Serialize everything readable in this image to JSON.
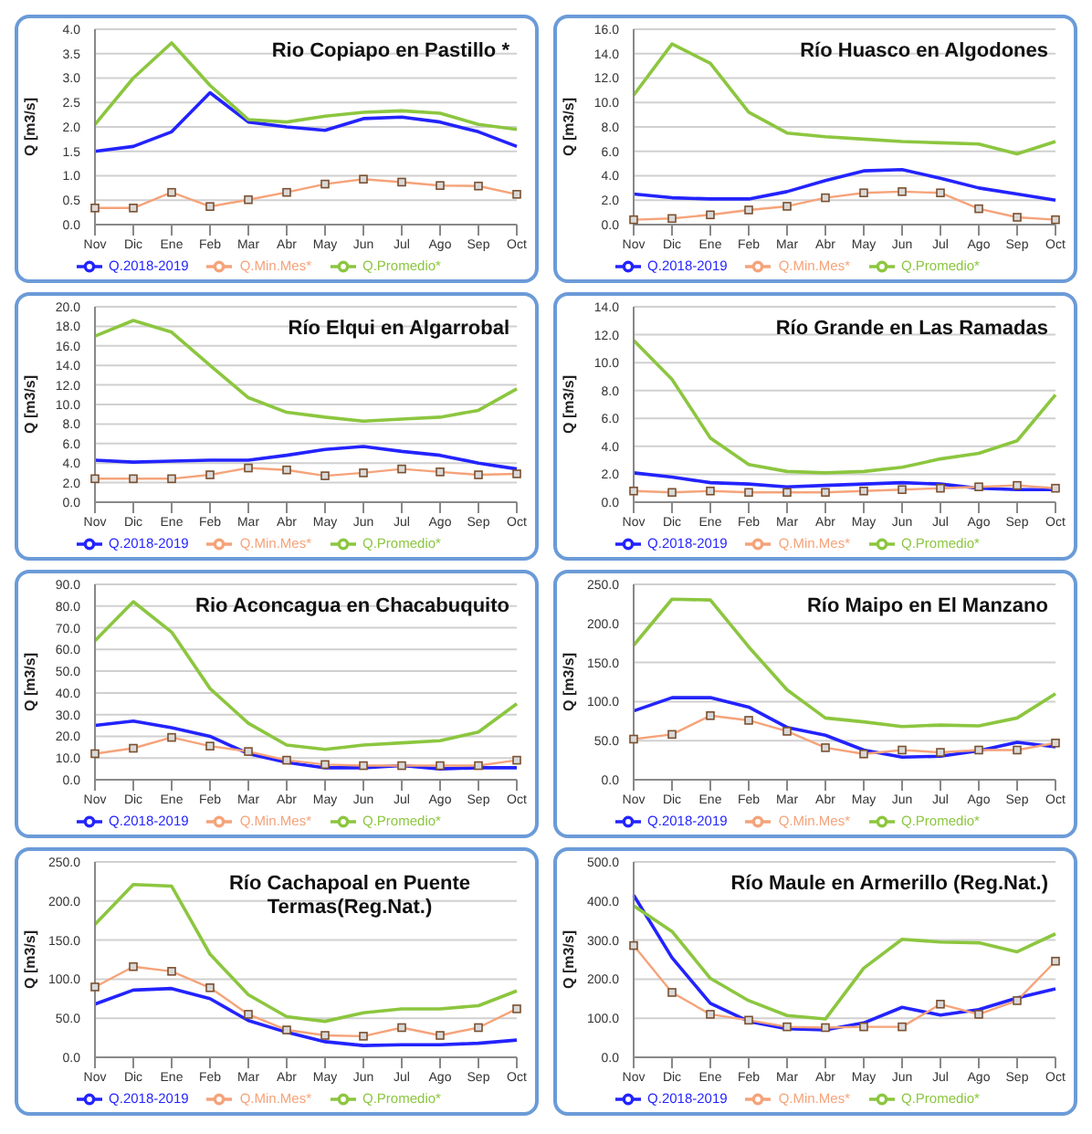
{
  "chart_data": [
    {
      "type": "line",
      "title": "Rio Copiapo en Pastillo *",
      "ylabel": "Q [m3/s]",
      "categories": [
        "Nov",
        "Dic",
        "Ene",
        "Feb",
        "Mar",
        "Abr",
        "May",
        "Jun",
        "Jul",
        "Ago",
        "Sep",
        "Oct"
      ],
      "ylim": [
        0,
        4
      ],
      "yticks": [
        {
          "value": 0,
          "label": "0.0"
        },
        {
          "value": 0.5,
          "label": "0.5"
        },
        {
          "value": 1,
          "label": "1.0"
        },
        {
          "value": 1.5,
          "label": "1.5"
        },
        {
          "value": 2,
          "label": "2.0"
        },
        {
          "value": 2.5,
          "label": "2.5"
        },
        {
          "value": 3,
          "label": "3.0"
        },
        {
          "value": 3.5,
          "label": "3.5"
        },
        {
          "value": 4,
          "label": "4.0"
        }
      ],
      "grid": "y",
      "legend": "bottom",
      "series": [
        {
          "name": "Q.2018-2019",
          "color": "#2323ff",
          "marker": "none",
          "values": [
            1.5,
            1.6,
            1.9,
            2.7,
            2.1,
            2.0,
            1.93,
            2.17,
            2.2,
            2.1,
            1.9,
            1.6
          ]
        },
        {
          "name": "Q.Promedio*",
          "color": "#8cc63f",
          "marker": "none",
          "values": [
            2.05,
            3.0,
            3.72,
            2.85,
            2.15,
            2.1,
            2.22,
            2.3,
            2.33,
            2.28,
            2.05,
            1.95
          ]
        },
        {
          "name": "Q.Min.Mes*",
          "color": "#f5a37a",
          "marker": "square",
          "values": [
            0.34,
            0.34,
            0.66,
            0.37,
            0.51,
            0.66,
            0.83,
            0.93,
            0.87,
            0.8,
            0.79,
            0.62
          ]
        }
      ]
    },
    {
      "type": "line",
      "title": "Río Huasco en Algodones",
      "ylabel": "Q [m3/s]",
      "categories": [
        "Nov",
        "Dic",
        "Ene",
        "Feb",
        "Mar",
        "Abr",
        "May",
        "Jun",
        "Jul",
        "Ago",
        "Sep",
        "Oct"
      ],
      "ylim": [
        0,
        16
      ],
      "yticks": [
        {
          "value": 0,
          "label": "0.0"
        },
        {
          "value": 2,
          "label": "2.0"
        },
        {
          "value": 4,
          "label": "4.0"
        },
        {
          "value": 6,
          "label": "6.0"
        },
        {
          "value": 8,
          "label": "8.0"
        },
        {
          "value": 10,
          "label": "10.0"
        },
        {
          "value": 12,
          "label": "12.0"
        },
        {
          "value": 14,
          "label": "14.0"
        },
        {
          "value": 16,
          "label": "16.0"
        }
      ],
      "grid": "y",
      "legend": "bottom",
      "series": [
        {
          "name": "Q.2018-2019",
          "color": "#2323ff",
          "marker": "none",
          "values": [
            2.5,
            2.2,
            2.1,
            2.1,
            2.7,
            3.6,
            4.4,
            4.5,
            3.8,
            3.0,
            2.5,
            2.0
          ]
        },
        {
          "name": "Q.Promedio*",
          "color": "#8cc63f",
          "marker": "none",
          "values": [
            10.6,
            14.8,
            13.2,
            9.2,
            7.5,
            7.2,
            7.0,
            6.8,
            6.7,
            6.6,
            5.8,
            6.8
          ]
        },
        {
          "name": "Q.Min.Mes*",
          "color": "#f5a37a",
          "marker": "square",
          "values": [
            0.4,
            0.5,
            0.8,
            1.2,
            1.5,
            2.2,
            2.6,
            2.7,
            2.6,
            1.3,
            0.6,
            0.4
          ]
        }
      ]
    },
    {
      "type": "line",
      "title": "Río Elqui en Algarrobal",
      "ylabel": "Q [m3/s]",
      "categories": [
        "Nov",
        "Dic",
        "Ene",
        "Feb",
        "Mar",
        "Abr",
        "May",
        "Jun",
        "Jul",
        "Ago",
        "Sep",
        "Oct"
      ],
      "ylim": [
        0,
        20
      ],
      "yticks": [
        {
          "value": 0,
          "label": "0.0"
        },
        {
          "value": 2,
          "label": "2.0"
        },
        {
          "value": 4,
          "label": "4.0"
        },
        {
          "value": 6,
          "label": "6.0"
        },
        {
          "value": 8,
          "label": "8.0"
        },
        {
          "value": 10,
          "label": "10.0"
        },
        {
          "value": 12,
          "label": "12.0"
        },
        {
          "value": 14,
          "label": "14.0"
        },
        {
          "value": 16,
          "label": "16.0"
        },
        {
          "value": 18,
          "label": "18.0"
        },
        {
          "value": 20,
          "label": "20.0"
        }
      ],
      "grid": "y",
      "legend": "bottom",
      "series": [
        {
          "name": "Q.2018-2019",
          "color": "#2323ff",
          "marker": "none",
          "values": [
            4.3,
            4.1,
            4.2,
            4.3,
            4.3,
            4.8,
            5.4,
            5.7,
            5.2,
            4.8,
            4.0,
            3.4
          ]
        },
        {
          "name": "Q.Promedio*",
          "color": "#8cc63f",
          "marker": "none",
          "values": [
            17.0,
            18.6,
            17.4,
            14.0,
            10.7,
            9.2,
            8.7,
            8.3,
            8.5,
            8.7,
            9.4,
            11.6
          ]
        },
        {
          "name": "Q.Min.Mes*",
          "color": "#f5a37a",
          "marker": "square",
          "values": [
            2.4,
            2.4,
            2.4,
            2.8,
            3.5,
            3.3,
            2.7,
            3.0,
            3.4,
            3.1,
            2.8,
            2.9
          ]
        }
      ]
    },
    {
      "type": "line",
      "title": "Río Grande en Las Ramadas",
      "ylabel": "Q [m3/s]",
      "categories": [
        "Nov",
        "Dic",
        "Ene",
        "Feb",
        "Mar",
        "Abr",
        "May",
        "Jun",
        "Jul",
        "Ago",
        "Sep",
        "Oct"
      ],
      "ylim": [
        0,
        14
      ],
      "yticks": [
        {
          "value": 0,
          "label": "0.0"
        },
        {
          "value": 2,
          "label": "2.0"
        },
        {
          "value": 4,
          "label": "4.0"
        },
        {
          "value": 6,
          "label": "6.0"
        },
        {
          "value": 8,
          "label": "8.0"
        },
        {
          "value": 10,
          "label": "10.0"
        },
        {
          "value": 12,
          "label": "12.0"
        },
        {
          "value": 14,
          "label": "14.0"
        }
      ],
      "grid": "y",
      "legend": "bottom",
      "series": [
        {
          "name": "Q.2018-2019",
          "color": "#2323ff",
          "marker": "none",
          "values": [
            2.1,
            1.8,
            1.4,
            1.3,
            1.1,
            1.2,
            1.3,
            1.4,
            1.3,
            1.0,
            0.9,
            0.9
          ]
        },
        {
          "name": "Q.Promedio*",
          "color": "#8cc63f",
          "marker": "none",
          "values": [
            11.6,
            8.8,
            4.6,
            2.7,
            2.2,
            2.1,
            2.2,
            2.5,
            3.1,
            3.5,
            4.4,
            7.7
          ]
        },
        {
          "name": "Q.Min.Mes*",
          "color": "#f5a37a",
          "marker": "square",
          "values": [
            0.8,
            0.7,
            0.8,
            0.7,
            0.7,
            0.7,
            0.8,
            0.9,
            1.0,
            1.1,
            1.2,
            1.0
          ]
        }
      ]
    },
    {
      "type": "line",
      "title": "Rio Aconcagua en Chacabuquito",
      "ylabel": "Q [m3/s]",
      "categories": [
        "Nov",
        "Dic",
        "Ene",
        "Feb",
        "Mar",
        "Abr",
        "May",
        "Jun",
        "Jul",
        "Ago",
        "Sep",
        "Oct"
      ],
      "ylim": [
        0,
        90
      ],
      "yticks": [
        {
          "value": 0,
          "label": "0.0"
        },
        {
          "value": 10,
          "label": "10.0"
        },
        {
          "value": 20,
          "label": "20.0"
        },
        {
          "value": 30,
          "label": "30.0"
        },
        {
          "value": 40,
          "label": "40.0"
        },
        {
          "value": 50,
          "label": "50.0"
        },
        {
          "value": 60,
          "label": "60.0"
        },
        {
          "value": 70,
          "label": "70.0"
        },
        {
          "value": 80,
          "label": "80.0"
        },
        {
          "value": 90,
          "label": "90.0"
        }
      ],
      "grid": "y",
      "legend": "bottom",
      "series": [
        {
          "name": "Q.2018-2019",
          "color": "#2323ff",
          "marker": "none",
          "values": [
            25,
            27,
            24,
            20,
            12,
            8,
            5.5,
            5.5,
            6.5,
            5,
            5.5,
            5.5
          ]
        },
        {
          "name": "Q.Promedio*",
          "color": "#8cc63f",
          "marker": "none",
          "values": [
            64,
            82,
            68,
            42,
            26,
            16,
            14,
            16,
            17,
            18,
            22,
            35
          ]
        },
        {
          "name": "Q.Min.Mes*",
          "color": "#f5a37a",
          "marker": "square",
          "values": [
            12,
            14.5,
            19.5,
            15.5,
            13,
            9,
            7,
            6.5,
            6.5,
            6.5,
            6.5,
            9
          ]
        }
      ]
    },
    {
      "type": "line",
      "title": "Río Maipo en El Manzano",
      "ylabel": "Q [m3/s]",
      "categories": [
        "Nov",
        "Dic",
        "Ene",
        "Feb",
        "Mar",
        "Abr",
        "May",
        "Jun",
        "Jul",
        "Ago",
        "Sep",
        "Oct"
      ],
      "ylim": [
        0,
        250
      ],
      "yticks": [
        {
          "value": 0,
          "label": "0.0"
        },
        {
          "value": 50,
          "label": "50.0"
        },
        {
          "value": 100,
          "label": "100.0"
        },
        {
          "value": 150,
          "label": "150.0"
        },
        {
          "value": 200,
          "label": "200.0"
        },
        {
          "value": 250,
          "label": "250.0"
        }
      ],
      "grid": "y",
      "legend": "bottom",
      "series": [
        {
          "name": "Q.2018-2019",
          "color": "#2323ff",
          "marker": "none",
          "values": [
            88,
            105,
            105,
            93,
            67,
            57,
            38,
            29,
            30,
            37,
            48,
            42
          ]
        },
        {
          "name": "Q.Promedio*",
          "color": "#8cc63f",
          "marker": "none",
          "values": [
            172,
            231,
            230,
            170,
            115,
            79,
            74,
            68,
            70,
            69,
            79,
            110
          ]
        },
        {
          "name": "Q.Min.Mes*",
          "color": "#f5a37a",
          "marker": "square",
          "values": [
            52,
            58,
            82,
            76,
            62,
            41,
            33,
            38,
            35,
            38,
            38,
            47
          ]
        }
      ]
    },
    {
      "type": "line",
      "title": "Río Cachapoal en Puente Termas(Reg.Nat.)",
      "ylabel": "Q [m3/s]",
      "categories": [
        "Nov",
        "Dic",
        "Ene",
        "Feb",
        "Mar",
        "Abr",
        "May",
        "Jun",
        "Jul",
        "Ago",
        "Sep",
        "Oct"
      ],
      "ylim": [
        0,
        250
      ],
      "yticks": [
        {
          "value": 0,
          "label": "0.0"
        },
        {
          "value": 50,
          "label": "50.0"
        },
        {
          "value": 100,
          "label": "100.0"
        },
        {
          "value": 150,
          "label": "150.0"
        },
        {
          "value": 200,
          "label": "200.0"
        },
        {
          "value": 250,
          "label": "250.0"
        }
      ],
      "grid": "y",
      "legend": "bottom",
      "series": [
        {
          "name": "Q.2018-2019",
          "color": "#2323ff",
          "marker": "none",
          "values": [
            68,
            86,
            88,
            75,
            47,
            32,
            20,
            15,
            16,
            16,
            18,
            22
          ]
        },
        {
          "name": "Q.Promedio*",
          "color": "#8cc63f",
          "marker": "none",
          "values": [
            170,
            221,
            219,
            132,
            80,
            52,
            46,
            57,
            62,
            62,
            66,
            85
          ]
        },
        {
          "name": "Q.Min.Mes*",
          "color": "#f5a37a",
          "marker": "square",
          "values": [
            90,
            116,
            110,
            89,
            55,
            35,
            28,
            27,
            38,
            28,
            38,
            62
          ]
        }
      ]
    },
    {
      "type": "line",
      "title": "Río Maule en Armerillo (Reg.Nat.)",
      "ylabel": "Q [m3/s]",
      "categories": [
        "Nov",
        "Dic",
        "Ene",
        "Feb",
        "Mar",
        "Abr",
        "May",
        "Jun",
        "Jul",
        "Ago",
        "Sep",
        "Oct"
      ],
      "ylim": [
        0,
        500
      ],
      "yticks": [
        {
          "value": 0,
          "label": "0.0"
        },
        {
          "value": 100,
          "label": "100.0"
        },
        {
          "value": 200,
          "label": "200.0"
        },
        {
          "value": 300,
          "label": "300.0"
        },
        {
          "value": 400,
          "label": "400.0"
        },
        {
          "value": 500,
          "label": "500.0"
        }
      ],
      "grid": "y",
      "legend": "bottom",
      "series": [
        {
          "name": "Q.2018-2019",
          "color": "#2323ff",
          "marker": "none",
          "values": [
            415,
            255,
            138,
            92,
            73,
            70,
            88,
            128,
            108,
            122,
            152,
            175
          ]
        },
        {
          "name": "Q.Promedio*",
          "color": "#8cc63f",
          "marker": "none",
          "values": [
            388,
            322,
            202,
            145,
            107,
            98,
            228,
            302,
            295,
            293,
            270,
            316
          ]
        },
        {
          "name": "Q.Min.Mes*",
          "color": "#f5a37a",
          "marker": "square",
          "values": [
            286,
            166,
            110,
            95,
            78,
            76,
            78,
            78,
            136,
            110,
            145,
            246
          ]
        }
      ]
    }
  ]
}
